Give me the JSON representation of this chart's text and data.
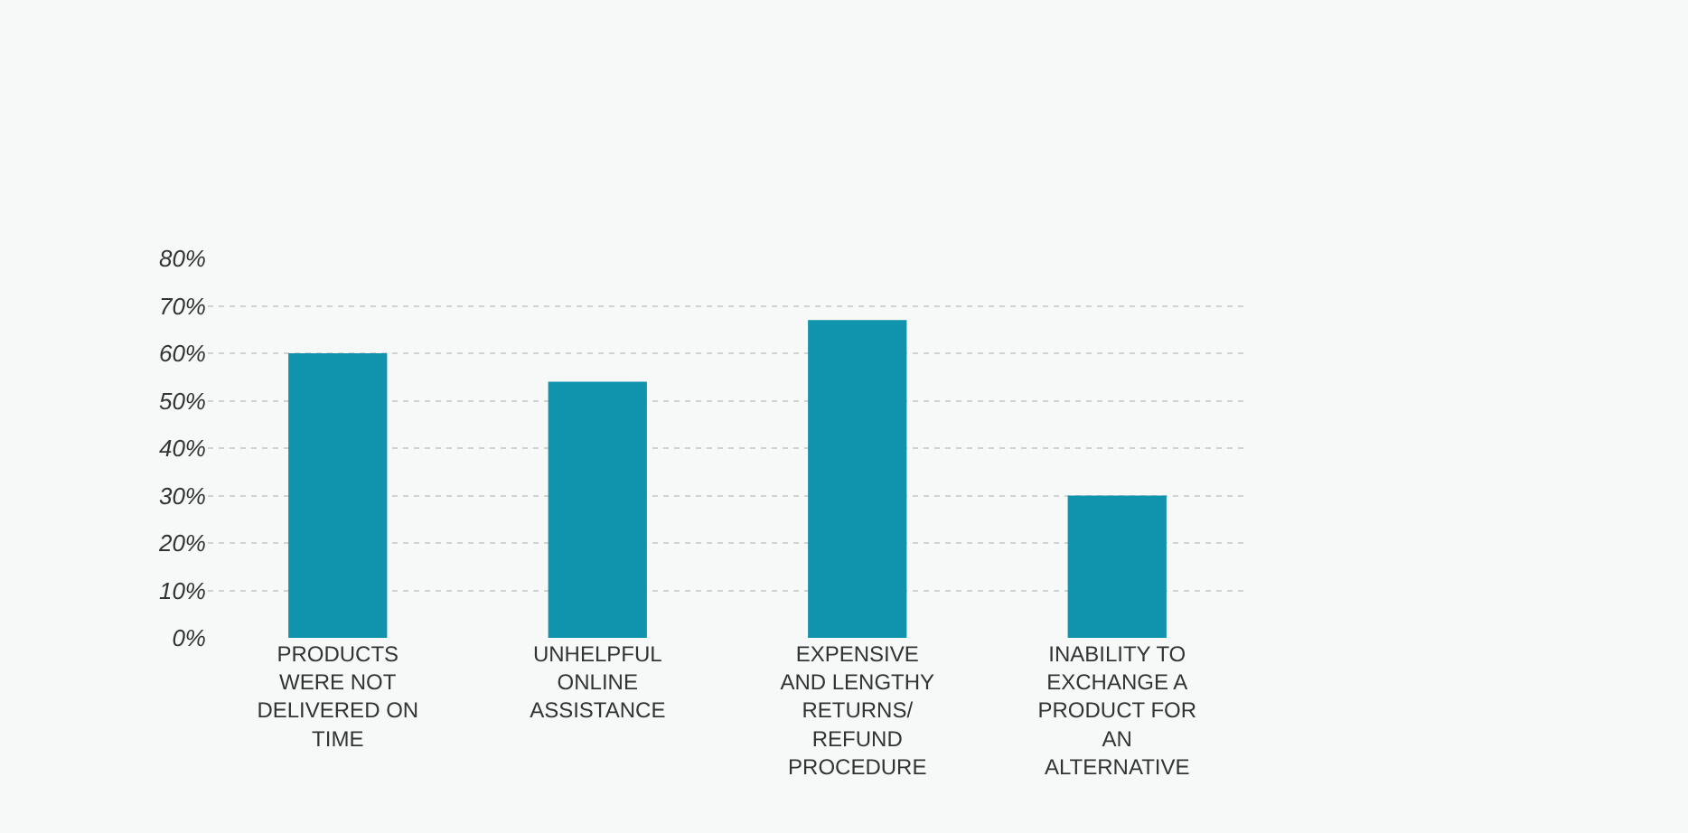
{
  "chart_data": {
    "type": "bar",
    "categories": [
      "PRODUCTS WERE NOT DELIVERED ON TIME",
      "UNHELPFUL ONLINE ASSISTANCE",
      "EXPENSIVE AND LENGTHY RETURNS/ REFUND PROCEDURE",
      "INABILITY TO EXCHANGE A PRODUCT FOR AN ALTERNATIVE"
    ],
    "values": [
      60,
      54,
      67,
      30
    ],
    "color": "#1093ad",
    "ylim": [
      0,
      80
    ],
    "yticks": [
      {
        "value": 0,
        "label": "0%"
      },
      {
        "value": 10,
        "label": "10%"
      },
      {
        "value": 20,
        "label": "20%"
      },
      {
        "value": 30,
        "label": "30%"
      },
      {
        "value": 40,
        "label": "40%"
      },
      {
        "value": 50,
        "label": "50%"
      },
      {
        "value": 60,
        "label": "60%"
      },
      {
        "value": 70,
        "label": "70%"
      },
      {
        "value": 80,
        "label": "80%"
      }
    ],
    "grid": "y"
  }
}
